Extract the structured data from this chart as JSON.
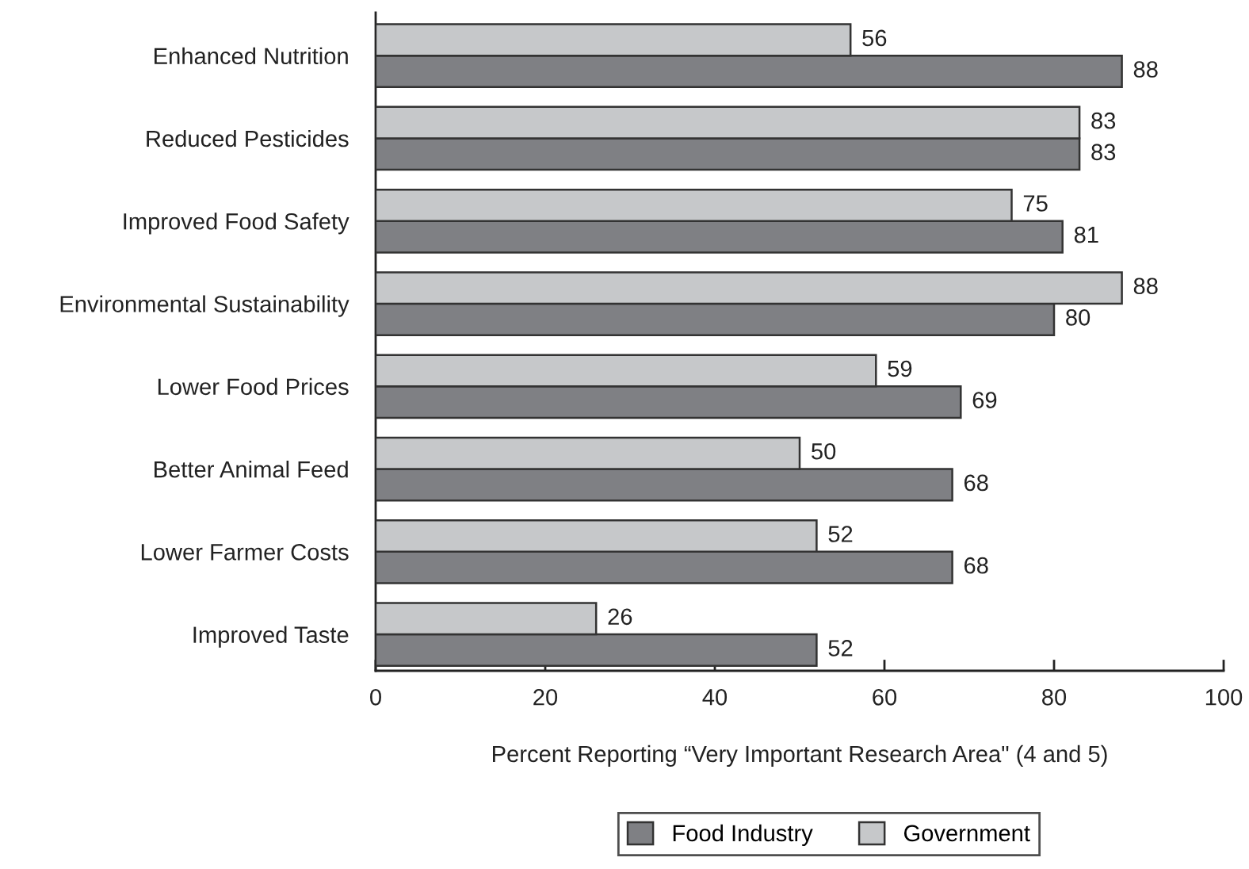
{
  "chart_data": {
    "type": "bar",
    "orientation": "horizontal",
    "categories": [
      "Enhanced Nutrition",
      "Reduced Pesticides",
      "Improved Food Safety",
      "Environmental Sustainability",
      "Lower Food Prices",
      "Better Animal Feed",
      "Lower Farmer Costs",
      "Improved Taste"
    ],
    "series": [
      {
        "name": "Food Industry",
        "color": "#7f8084",
        "values": [
          88,
          83,
          81,
          80,
          69,
          68,
          68,
          52
        ]
      },
      {
        "name": "Government",
        "color": "#c6c8ca",
        "values": [
          56,
          83,
          75,
          88,
          59,
          50,
          52,
          26
        ]
      }
    ],
    "xlabel": "Percent Reporting “Very Important Research Area\" (4 and 5)",
    "xlim": [
      0,
      100
    ],
    "xticks": [
      0,
      20,
      40,
      60,
      80,
      100
    ],
    "data_labels": true,
    "grid": false,
    "legend": "bottom"
  }
}
